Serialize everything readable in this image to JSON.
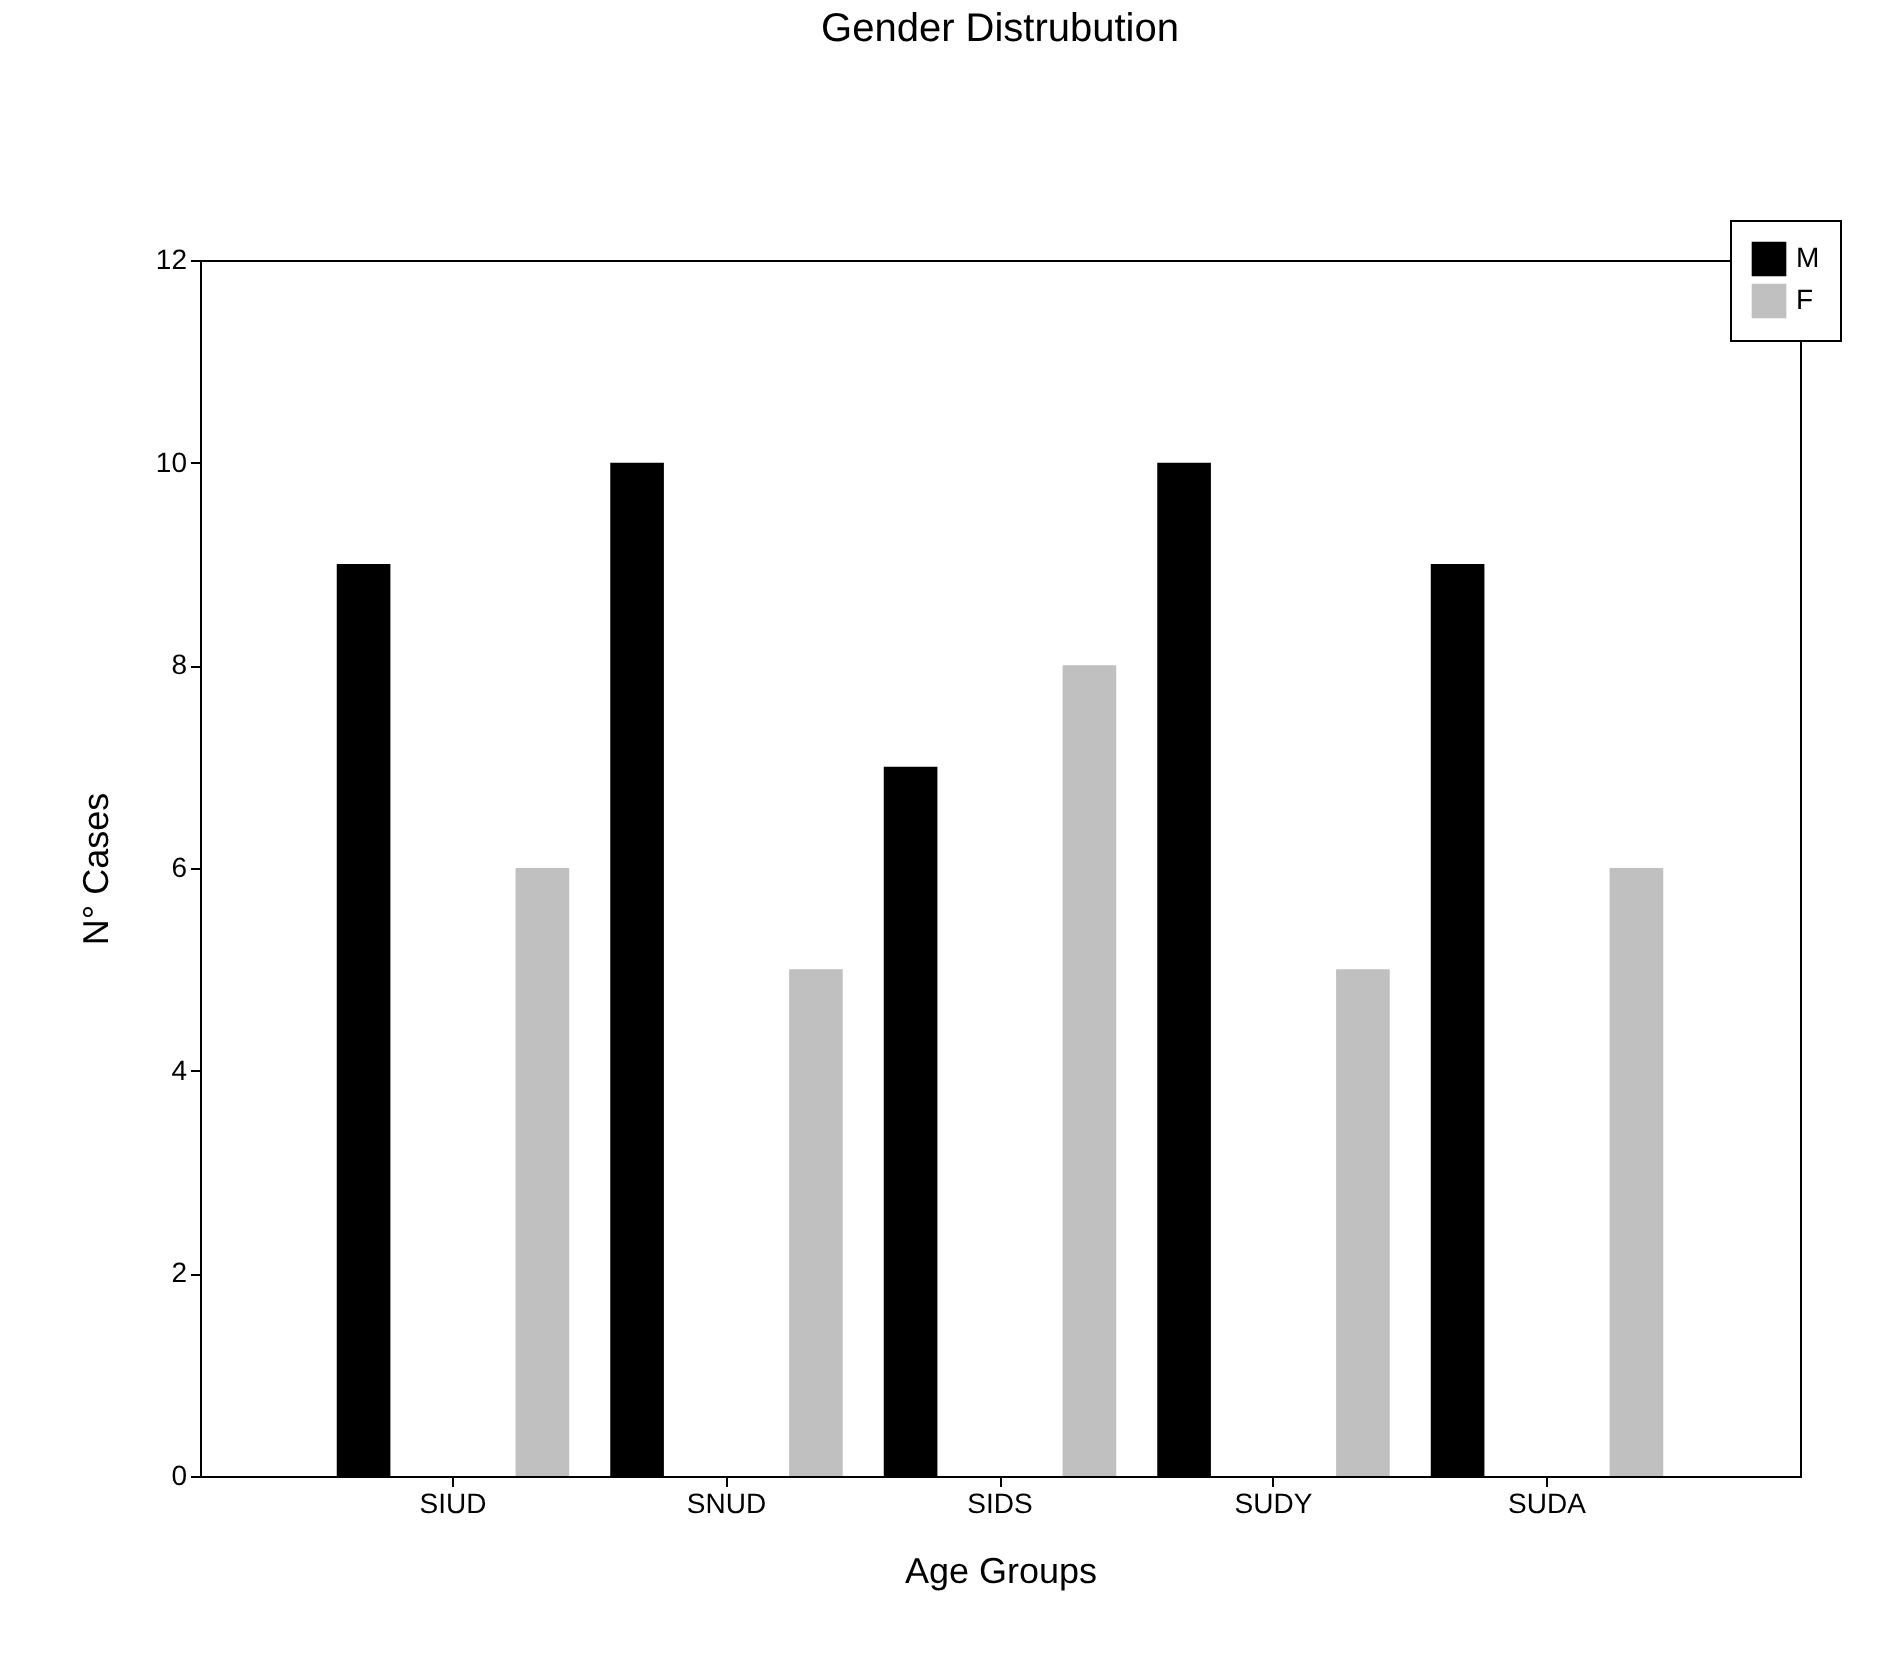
{
  "chart_data": {
    "type": "bar",
    "title": "Gender Distrubution",
    "xlabel": "Age Groups",
    "ylabel": "N° Cases",
    "categories": [
      "SIUD",
      "SNUD",
      "SIDS",
      "SUDY",
      "SUDA"
    ],
    "series": [
      {
        "name": "M",
        "color": "#000000",
        "values": [
          9,
          10,
          7,
          10,
          9
        ]
      },
      {
        "name": "F",
        "color": "#c0c0c0",
        "values": [
          6,
          5,
          8,
          5,
          6
        ]
      }
    ],
    "ylim": [
      0,
      12
    ],
    "yticks": [
      0,
      2,
      4,
      6,
      8,
      10,
      12
    ],
    "grid": false,
    "legend": "top right"
  }
}
